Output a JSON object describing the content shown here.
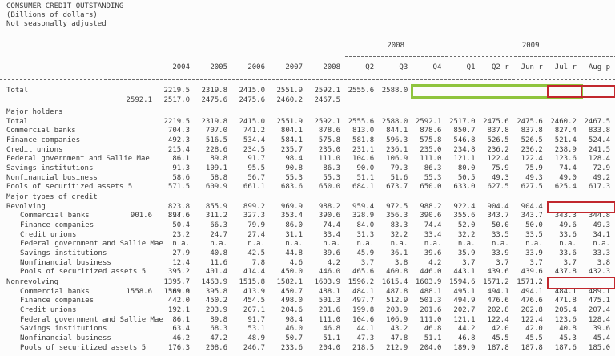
{
  "title": {
    "line1": "CONSUMER CREDIT OUTSTANDING",
    "line2": "(Billions of dollars)",
    "line3": "Not seasonally adjusted"
  },
  "colors": {
    "highlight_green": "#8fc43e",
    "highlight_red": "#c1272d"
  },
  "columns": {
    "years": [
      "2004",
      "2005",
      "2006",
      "2007",
      "2008"
    ],
    "group_2008": {
      "label": "2008",
      "quarters": [
        "Q2",
        "Q3",
        "Q4"
      ]
    },
    "group_2009": {
      "label": "2009",
      "quarters": [
        "Q1",
        "Q2 r",
        "Jun r",
        "Jul r",
        "Aug p"
      ]
    }
  },
  "total_block": [
    {
      "label": "Total",
      "indent": 0,
      "values": [
        "2219.5",
        "2319.8",
        "2415.0",
        "2551.9",
        "2592.1",
        "2555.6",
        "2588.0",
        "2592.1",
        "2517.0",
        "2475.6",
        "2475.6",
        "2460.2",
        "2467.5"
      ],
      "hl": [
        {
          "s": 8,
          "e": 12,
          "c": "green"
        },
        {
          "s": 12,
          "e": 12,
          "c": "red"
        },
        {
          "s": 13,
          "e": 13,
          "c": "red"
        }
      ]
    }
  ],
  "major_holders": [
    {
      "label": "Major holders"
    },
    {
      "label": "Total",
      "indent": 0,
      "values": [
        "2219.5",
        "2319.8",
        "2415.0",
        "2551.9",
        "2592.1",
        "2555.6",
        "2588.0",
        "2592.1",
        "2517.0",
        "2475.6",
        "2475.6",
        "2460.2",
        "2467.5"
      ]
    },
    {
      "label": "Commercial banks",
      "indent": 0,
      "values": [
        "704.3",
        "707.0",
        "741.2",
        "804.1",
        "878.6",
        "813.0",
        "844.1",
        "878.6",
        "850.7",
        "837.8",
        "837.8",
        "827.4",
        "833.8"
      ]
    },
    {
      "label": "Finance companies",
      "indent": 0,
      "values": [
        "492.3",
        "516.5",
        "534.4",
        "584.1",
        "575.8",
        "581.8",
        "596.3",
        "575.8",
        "546.8",
        "526.5",
        "526.5",
        "521.4",
        "524.4"
      ]
    },
    {
      "label": "Credit unions",
      "indent": 0,
      "values": [
        "215.4",
        "228.6",
        "234.5",
        "235.7",
        "235.0",
        "231.1",
        "236.1",
        "235.0",
        "234.8",
        "236.2",
        "236.2",
        "238.9",
        "241.5"
      ]
    },
    {
      "label": "Federal government and Sallie Mae",
      "indent": 0,
      "values": [
        "86.1",
        "89.8",
        "91.7",
        "98.4",
        "111.0",
        "104.6",
        "106.9",
        "111.0",
        "121.1",
        "122.4",
        "122.4",
        "123.6",
        "128.4"
      ]
    },
    {
      "label": "Savings institutions",
      "indent": 0,
      "values": [
        "91.3",
        "109.1",
        "95.5",
        "90.8",
        "86.3",
        "90.0",
        "79.3",
        "86.3",
        "80.0",
        "75.9",
        "75.9",
        "74.4",
        "72.9"
      ]
    },
    {
      "label": "Nonfinancial business",
      "indent": 0,
      "values": [
        "58.6",
        "58.8",
        "56.7",
        "55.3",
        "55.3",
        "51.1",
        "51.6",
        "55.3",
        "50.5",
        "49.3",
        "49.3",
        "49.0",
        "49.2"
      ]
    },
    {
      "label": "Pools of securitized assets 5",
      "indent": 0,
      "values": [
        "571.5",
        "609.9",
        "661.1",
        "683.6",
        "650.0",
        "684.1",
        "673.7",
        "650.0",
        "633.0",
        "627.5",
        "627.5",
        "625.4",
        "617.3"
      ]
    }
  ],
  "major_types": [
    {
      "label": "Major types of credit"
    },
    {
      "label": "Revolving",
      "indent": 0,
      "values": [
        "823.8",
        "855.9",
        "899.2",
        "969.9",
        "988.2",
        "959.4",
        "972.5",
        "988.2",
        "922.4",
        "904.4",
        "904.4",
        "901.6",
        "897.6"
      ],
      "hl": [
        {
          "s": 12,
          "e": 13,
          "c": "red"
        }
      ]
    },
    {
      "label": "Commercial banks",
      "indent": 1,
      "values": [
        "314.6",
        "311.2",
        "327.3",
        "353.4",
        "390.6",
        "328.9",
        "356.3",
        "390.6",
        "355.6",
        "343.7",
        "343.7",
        "343.3",
        "344.8"
      ]
    },
    {
      "label": "Finance companies",
      "indent": 1,
      "values": [
        "50.4",
        "66.3",
        "79.9",
        "86.0",
        "74.4",
        "84.0",
        "83.3",
        "74.4",
        "52.0",
        "50.0",
        "50.0",
        "49.6",
        "49.3"
      ]
    },
    {
      "label": "Credit unions",
      "indent": 1,
      "values": [
        "23.2",
        "24.7",
        "27.4",
        "31.1",
        "33.4",
        "31.3",
        "32.2",
        "33.4",
        "32.2",
        "33.5",
        "33.5",
        "33.6",
        "34.1"
      ]
    },
    {
      "label": "Federal government and Sallie Mae",
      "indent": 1,
      "values": [
        "n.a.",
        "n.a.",
        "n.a.",
        "n.a.",
        "n.a.",
        "n.a.",
        "n.a.",
        "n.a.",
        "n.a.",
        "n.a.",
        "n.a.",
        "n.a.",
        "n.a."
      ]
    },
    {
      "label": "Savings institutions",
      "indent": 1,
      "values": [
        "27.9",
        "40.8",
        "42.5",
        "44.8",
        "39.6",
        "45.9",
        "36.1",
        "39.6",
        "35.9",
        "33.9",
        "33.9",
        "33.6",
        "33.3"
      ]
    },
    {
      "label": "Nonfinancial business",
      "indent": 1,
      "values": [
        "12.4",
        "11.6",
        "7.8",
        "4.6",
        "4.2",
        "3.7",
        "3.8",
        "4.2",
        "3.7",
        "3.7",
        "3.7",
        "3.7",
        "3.8"
      ]
    },
    {
      "label": "Pools of securitized assets 5",
      "indent": 1,
      "values": [
        "395.2",
        "401.4",
        "414.4",
        "450.0",
        "446.0",
        "465.6",
        "460.8",
        "446.0",
        "443.1",
        "439.6",
        "439.6",
        "437.8",
        "432.3"
      ]
    }
  ],
  "nonrevolving": [
    {
      "label": "Nonrevolving",
      "indent": 0,
      "values": [
        "1395.7",
        "1463.9",
        "1515.8",
        "1582.1",
        "1603.9",
        "1596.2",
        "1615.4",
        "1603.9",
        "1594.6",
        "1571.2",
        "1571.2",
        "1558.6",
        "1569.9"
      ],
      "hl": [
        {
          "s": 12,
          "e": 13,
          "c": "red"
        }
      ]
    },
    {
      "label": "Commercial banks",
      "indent": 1,
      "values": [
        "389.6",
        "395.8",
        "413.9",
        "450.7",
        "488.1",
        "484.1",
        "487.8",
        "488.1",
        "495.1",
        "494.1",
        "494.1",
        "484.1",
        "489.1"
      ]
    },
    {
      "label": "Finance companies",
      "indent": 1,
      "values": [
        "442.0",
        "450.2",
        "454.5",
        "498.0",
        "501.3",
        "497.7",
        "512.9",
        "501.3",
        "494.9",
        "476.6",
        "476.6",
        "471.8",
        "475.1"
      ]
    },
    {
      "label": "Credit unions",
      "indent": 1,
      "values": [
        "192.1",
        "203.9",
        "207.1",
        "204.6",
        "201.6",
        "199.8",
        "203.9",
        "201.6",
        "202.7",
        "202.8",
        "202.8",
        "205.4",
        "207.4"
      ]
    },
    {
      "label": "Federal government and Sallie Mae",
      "indent": 1,
      "values": [
        "86.1",
        "89.8",
        "91.7",
        "98.4",
        "111.0",
        "104.6",
        "106.9",
        "111.0",
        "121.1",
        "122.4",
        "122.4",
        "123.6",
        "128.4"
      ]
    },
    {
      "label": "Savings institutions",
      "indent": 1,
      "values": [
        "63.4",
        "68.3",
        "53.1",
        "46.0",
        "46.8",
        "44.1",
        "43.2",
        "46.8",
        "44.2",
        "42.0",
        "42.0",
        "40.8",
        "39.6"
      ]
    },
    {
      "label": "Nonfinancial business",
      "indent": 1,
      "values": [
        "46.2",
        "47.2",
        "48.9",
        "50.7",
        "51.1",
        "47.3",
        "47.8",
        "51.1",
        "46.8",
        "45.5",
        "45.5",
        "45.3",
        "45.4"
      ]
    },
    {
      "label": "Pools of securitized assets 5",
      "indent": 1,
      "values": [
        "176.3",
        "208.6",
        "246.7",
        "233.6",
        "204.0",
        "218.5",
        "212.9",
        "204.0",
        "189.9",
        "187.8",
        "187.8",
        "187.6",
        "185.0"
      ]
    }
  ]
}
